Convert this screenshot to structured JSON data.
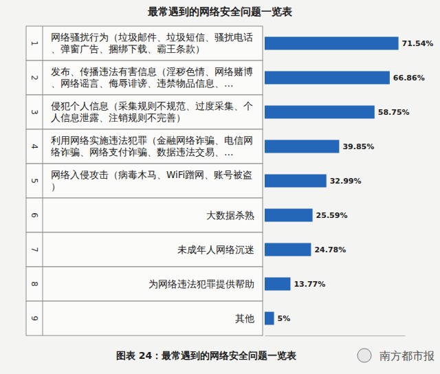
{
  "chart_data": {
    "type": "bar",
    "orientation": "horizontal",
    "title": "最常遇到的网络安全问题一览表",
    "ranks": [
      1,
      2,
      3,
      4,
      5,
      6,
      7,
      8,
      9
    ],
    "categories": [
      "网络骚扰行为（垃圾邮件、垃圾短信、骚扰电话、弹窗广告、捆绑下载、霸王条款）",
      "发布、传播违法有害信息（淫秽色情、网络赌博、网络谣言、侮辱诽谤、违禁物品信息、…",
      "侵犯个人信息（采集规则不规范、过度采集、个人信息泄露、注销规则不完善）",
      "利用网络实施违法犯罪（金融网络诈骗、电信网络诈骗、网络支付诈骗、数据违法交易、…",
      "网络入侵攻击（病毒木马、WiFi蹭网、账号被盗）",
      "大数据杀熟",
      "未成年人网络沉迷",
      "为网络违法犯罪提供帮助",
      "其他"
    ],
    "values": [
      71.54,
      66.86,
      58.75,
      39.85,
      32.99,
      25.59,
      24.78,
      13.77,
      5
    ],
    "value_labels": [
      "71.54%",
      "66.86%",
      "58.75%",
      "39.85%",
      "32.99%",
      "25.59%",
      "24.78%",
      "13.77%",
      "5%"
    ],
    "color": "#2466b8",
    "xlim": [
      0,
      75
    ],
    "xticks": [],
    "grid": false,
    "data_labels": true,
    "tick_labels": false,
    "annotations": [
      "图表 24：最常遇到的网络安全问题一览表",
      "南方都市报"
    ]
  }
}
